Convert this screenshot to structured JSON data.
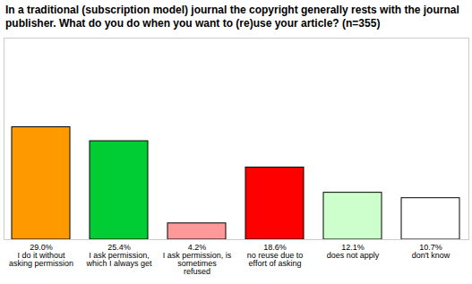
{
  "chart_data": {
    "type": "bar",
    "title": "In a traditional (subscription model) journal the copyright generally rests with the journal publisher. What do you do when you want to (re)use your article? (n=355)",
    "categories": [
      "I do it without asking permission",
      "I ask permission, which I always get",
      "I ask permission, is sometimes refused",
      "no reuse due to effort of asking",
      "does not apply",
      "don't know"
    ],
    "values": [
      29.0,
      25.4,
      4.2,
      18.6,
      12.1,
      10.7
    ],
    "value_labels": [
      "29.0%",
      "25.4%",
      "4.2%",
      "18.6%",
      "12.1%",
      "10.7%"
    ],
    "colors": [
      "#ff9900",
      "#00cc33",
      "#ff9999",
      "#ff0000",
      "#ccffcc",
      "#ffffff"
    ],
    "ylim": [
      0,
      52
    ],
    "grid": false,
    "data_labels": true,
    "tick_labels": "x"
  }
}
